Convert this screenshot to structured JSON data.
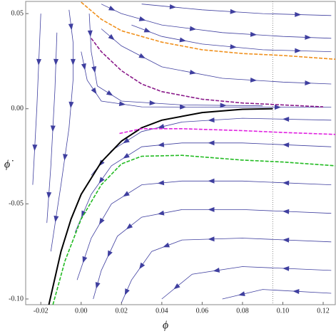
{
  "chart_data": {
    "type": "streamplot",
    "xlabel": "ϕ",
    "ylabel": "ϕ̇",
    "xlim": [
      -0.0275,
      0.126
    ],
    "ylim": [
      -0.103,
      0.0564
    ],
    "xticks": [
      -0.02,
      {
        "value": 0,
        "label": "0.00"
      },
      0.02,
      0.04,
      0.06,
      0.08,
      {
        "value": 0.1,
        "label": "0.10"
      },
      0.12
    ],
    "yticks": [
      {
        "value": -0.1,
        "label": "-0.10"
      },
      -0.05,
      {
        "value": 0,
        "label": "0.00"
      },
      0.05
    ],
    "vline": 0.095,
    "stream_color": "#3f3f9f",
    "streamlines": [
      {
        "x": [
          -0.006,
          -0.004,
          -0.004,
          -0.006,
          -0.01,
          -0.015
        ],
        "y": [
          0.052,
          0.035,
          0.015,
          -0.01,
          -0.04,
          -0.075
        ]
      },
      {
        "x": [
          0.01,
          0.02,
          0.04,
          0.07,
          0.1,
          0.124
        ],
        "y": [
          0.055,
          0.05,
          0.044,
          0.04,
          0.038,
          0.037
        ]
      },
      {
        "x": [
          0.03,
          0.06,
          0.09,
          0.124
        ],
        "y": [
          0.055,
          0.052,
          0.05,
          0.049
        ]
      },
      {
        "x": [
          0.01,
          0.02,
          0.04,
          0.07,
          0.1,
          0.124
        ],
        "y": [
          0.042,
          0.033,
          0.022,
          0.016,
          0.014,
          0.013
        ]
      },
      {
        "x": [
          0.025,
          0.04,
          0.06,
          0.09,
          0.124
        ],
        "y": [
          0.044,
          0.038,
          0.034,
          0.031,
          0.03
        ]
      },
      {
        "x": [
          0.0,
          0.003,
          0.01,
          0.03,
          0.07,
          0.124
        ],
        "y": [
          0.03,
          0.015,
          0.004,
          0.001,
          0.0008,
          0.0008
        ]
      },
      {
        "x": [
          0.124,
          0.08,
          0.05,
          0.03,
          0.015,
          0.005
        ],
        "y": [
          -0.006,
          -0.005,
          -0.007,
          -0.012,
          -0.022,
          -0.035
        ]
      },
      {
        "x": [
          0.124,
          0.08,
          0.05,
          0.03,
          0.015,
          0.005,
          -0.003
        ],
        "y": [
          -0.02,
          -0.018,
          -0.018,
          -0.02,
          -0.03,
          -0.045,
          -0.065
        ]
      },
      {
        "x": [
          0.124,
          0.08,
          0.05,
          0.03,
          0.015,
          0.005,
          -0.002
        ],
        "y": [
          -0.04,
          -0.038,
          -0.038,
          -0.04,
          -0.05,
          -0.068,
          -0.09
        ]
      },
      {
        "x": [
          0.124,
          0.08,
          0.05,
          0.03,
          0.018,
          0.01,
          0.006
        ],
        "y": [
          -0.055,
          -0.053,
          -0.053,
          -0.057,
          -0.067,
          -0.085,
          -0.1
        ]
      },
      {
        "x": [
          0.124,
          0.08,
          0.05,
          0.035,
          0.025,
          0.02
        ],
        "y": [
          -0.07,
          -0.068,
          -0.069,
          -0.075,
          -0.09,
          -0.102
        ]
      },
      {
        "x": [
          0.124,
          0.08,
          0.055,
          0.04
        ],
        "y": [
          -0.085,
          -0.083,
          -0.087,
          -0.1
        ]
      },
      {
        "x": [
          0.124,
          0.09,
          0.07
        ],
        "y": [
          -0.097,
          -0.095,
          -0.1
        ]
      },
      {
        "x": [
          -0.012,
          -0.013,
          -0.015,
          -0.017
        ],
        "y": [
          0.04,
          0.01,
          -0.03,
          -0.06
        ]
      },
      {
        "x": [
          -0.02,
          -0.022,
          -0.024
        ],
        "y": [
          0.05,
          0.0,
          -0.04
        ]
      },
      {
        "x": [
          0.004,
          0.005,
          0.008,
          0.02,
          0.05,
          0.09
        ],
        "y": [
          0.05,
          0.03,
          0.012,
          0.004,
          0.002,
          0.0015
        ]
      }
    ],
    "series": [
      {
        "color": "#f0901c",
        "dash": true,
        "x": [
          0.0,
          0.01,
          0.02,
          0.04,
          0.06,
          0.08,
          0.1,
          0.126
        ],
        "y": [
          0.056,
          0.047,
          0.041,
          0.035,
          0.031,
          0.029,
          0.028,
          0.026
        ]
      },
      {
        "color": "#8a1a8a",
        "dash": true,
        "x": [
          0.005,
          0.01,
          0.02,
          0.03,
          0.04,
          0.06,
          0.08,
          0.1,
          0.12
        ],
        "y": [
          0.037,
          0.03,
          0.02,
          0.013,
          0.009,
          0.005,
          0.003,
          0.002,
          0.001
        ]
      },
      {
        "color": "#000000",
        "dash": false,
        "x": [
          -0.016,
          -0.01,
          -0.005,
          0.0,
          0.01,
          0.02,
          0.03,
          0.04,
          0.06,
          0.08,
          0.095
        ],
        "y": [
          -0.103,
          -0.075,
          -0.058,
          -0.045,
          -0.028,
          -0.017,
          -0.01,
          -0.006,
          -0.002,
          -0.0003,
          0.0
        ]
      },
      {
        "color": "#e020e0",
        "dash": true,
        "x": [
          0.019,
          0.03,
          0.05,
          0.08,
          0.1,
          0.126
        ],
        "y": [
          -0.013,
          -0.0105,
          -0.0105,
          -0.0115,
          -0.0125,
          -0.0135
        ]
      },
      {
        "color": "#22bb22",
        "dash": true,
        "x": [
          -0.014,
          -0.008,
          0.0,
          0.01,
          0.02,
          0.03,
          0.05,
          0.08,
          0.1,
          0.126
        ],
        "y": [
          -0.103,
          -0.08,
          -0.058,
          -0.04,
          -0.029,
          -0.025,
          -0.0245,
          -0.027,
          -0.028,
          -0.03
        ]
      }
    ]
  }
}
